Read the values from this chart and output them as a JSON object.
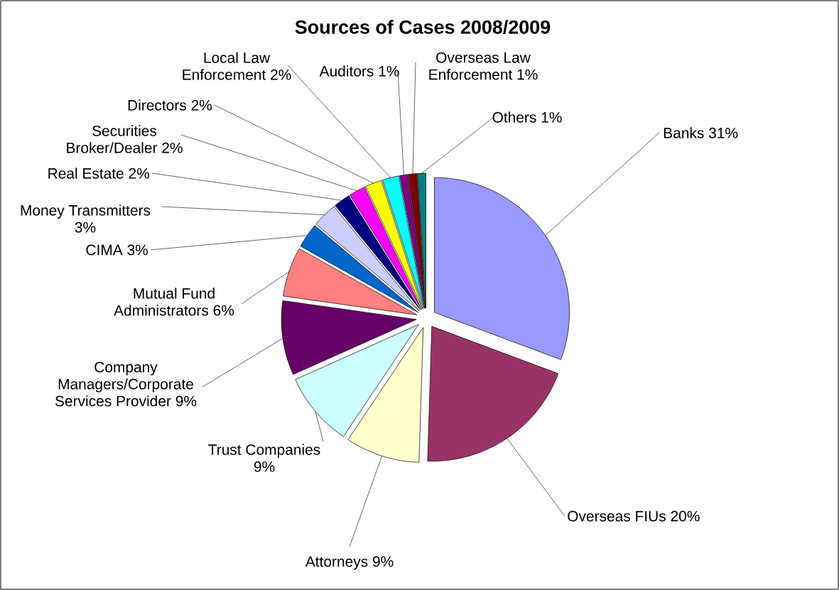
{
  "chart_data": {
    "type": "pie",
    "title": "Sources of Cases 2008/2009",
    "categories": [
      "Banks",
      "Overseas FIUs",
      "Attorneys",
      "Trust Companies",
      "Company Managers/Corporate Services Provider",
      "Mutual Fund Administrators",
      "CIMA",
      "Money Transmitters",
      "Real Estate",
      "Securities Broker/Dealer",
      "Directors",
      "Local Law Enforcement",
      "Auditors",
      "Overseas Law Enforcement",
      "Others"
    ],
    "values": [
      31,
      20,
      9,
      9,
      9,
      6,
      3,
      3,
      2,
      2,
      2,
      2,
      1,
      1,
      1
    ],
    "value_labels": [
      "31%",
      "20%",
      "9%",
      "9%",
      "9%",
      "6%",
      "3%",
      "3%",
      "2%",
      "2%",
      "2%",
      "2%",
      "1%",
      "1%",
      "1%"
    ],
    "colors": [
      "#9999ff",
      "#993366",
      "#ffffcc",
      "#ccffff",
      "#660066",
      "#ff8080",
      "#0066cc",
      "#ccccff",
      "#000080",
      "#ff00ff",
      "#ffff00",
      "#00ffff",
      "#800080",
      "#800000",
      "#008080"
    ]
  }
}
